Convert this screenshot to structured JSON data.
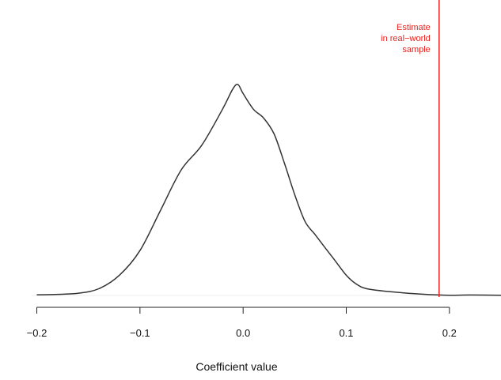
{
  "chart_data": {
    "type": "line",
    "title": "",
    "xlabel": "Coefficient value",
    "ylabel": "",
    "xlim": [
      -0.205,
      0.25
    ],
    "ylim": [
      0,
      1
    ],
    "xticks": [
      -0.2,
      -0.1,
      0.0,
      0.1,
      0.2
    ],
    "xtick_labels": [
      "−0.2",
      "−0.1",
      "0.0",
      "0.1",
      "0.2"
    ],
    "grid": false,
    "series": [
      {
        "color": "#333333",
        "x": [
          -0.2,
          -0.18,
          -0.16,
          -0.14,
          -0.12,
          -0.1,
          -0.08,
          -0.06,
          -0.04,
          -0.02,
          -0.01,
          -0.005,
          0.0,
          0.01,
          0.02,
          0.03,
          0.04,
          0.05,
          0.06,
          0.07,
          0.08,
          0.09,
          0.1,
          0.11,
          0.12,
          0.14,
          0.16,
          0.18,
          0.2,
          0.22,
          0.25
        ],
        "y": [
          0.003,
          0.005,
          0.01,
          0.03,
          0.09,
          0.2,
          0.38,
          0.56,
          0.67,
          0.83,
          0.92,
          0.94,
          0.9,
          0.83,
          0.79,
          0.72,
          0.59,
          0.45,
          0.33,
          0.27,
          0.21,
          0.15,
          0.09,
          0.05,
          0.03,
          0.018,
          0.01,
          0.004,
          0.001,
          0.002,
          0.001
        ]
      }
    ],
    "reference_line": {
      "x": 0.19,
      "color": "#e8231f",
      "label_lines": [
        "Estimate",
        "in real−world",
        "sample"
      ]
    }
  }
}
